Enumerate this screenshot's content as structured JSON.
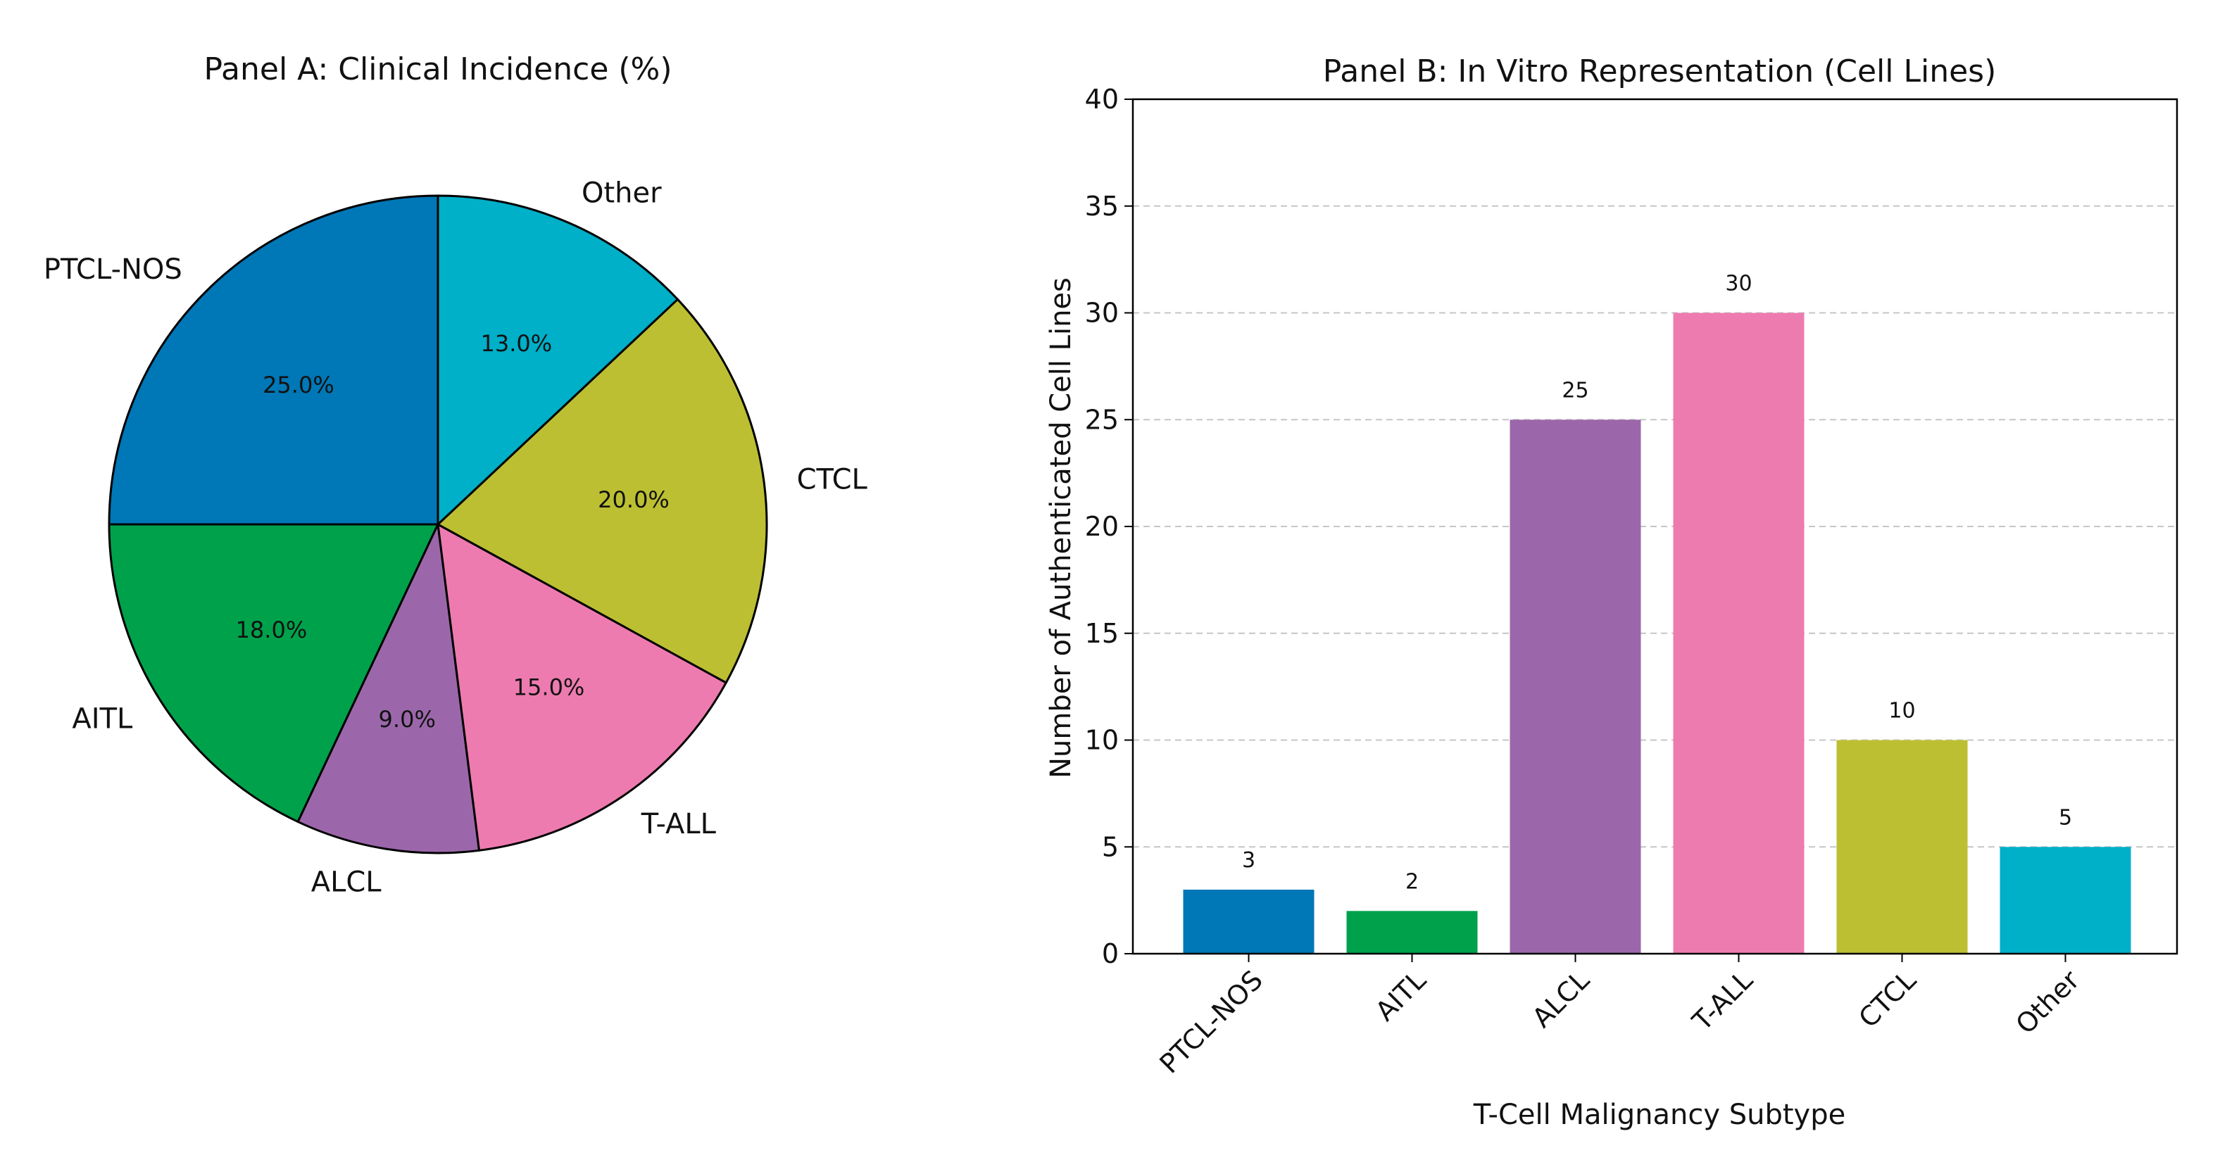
{
  "chart_data": [
    {
      "type": "pie",
      "title": "Panel A: Clinical Incidence (%)",
      "categories": [
        "PTCL-NOS",
        "AITL",
        "ALCL",
        "T-ALL",
        "CTCL",
        "Other"
      ],
      "values": [
        25.0,
        18.0,
        9.0,
        15.0,
        20.0,
        13.0
      ],
      "value_labels": [
        "25.0%",
        "18.0%",
        "9.0%",
        "15.0%",
        "20.0%",
        "13.0%"
      ],
      "colors": [
        "#0077b6",
        "#00a14b",
        "#9b67aa",
        "#ed7bb0",
        "#bcbf32",
        "#00afc8"
      ],
      "start_angle_deg": 90,
      "direction": "counterclockwise",
      "edge_color": "#000000"
    },
    {
      "type": "bar",
      "title": "Panel B: In Vitro Representation (Cell Lines)",
      "categories": [
        "PTCL-NOS",
        "AITL",
        "ALCL",
        "T-ALL",
        "CTCL",
        "Other"
      ],
      "values": [
        3,
        2,
        25,
        30,
        10,
        5
      ],
      "value_labels": [
        "3",
        "2",
        "25",
        "30",
        "10",
        "5"
      ],
      "colors": [
        "#0077b6",
        "#00a14b",
        "#9b67aa",
        "#ed7bb0",
        "#bcbf32",
        "#00afc8"
      ],
      "xlabel": "T-Cell Malignancy Subtype",
      "ylabel": "Number of Authenticated Cell Lines",
      "ylim": [
        0,
        40
      ],
      "yticks": [
        0,
        5,
        10,
        15,
        20,
        25,
        30,
        35,
        40
      ],
      "ytick_labels": [
        "0",
        "5",
        "10",
        "15",
        "20",
        "25",
        "30",
        "35",
        "40"
      ],
      "grid": "y-dashed"
    }
  ]
}
